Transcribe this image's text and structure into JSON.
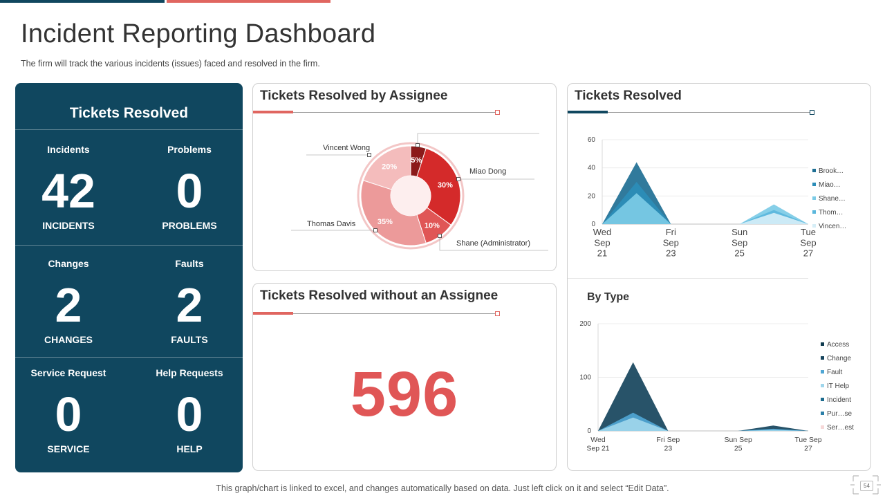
{
  "page": {
    "title": "Incident Reporting Dashboard",
    "subtitle": "The firm will track the various  incidents (issues) faced and resolved  in the firm.",
    "footer": "This graph/chart is linked to excel, and changes automatically based on data. Just left click on it and select “Edit Data”.",
    "page_number": "54"
  },
  "left_panel": {
    "title": "Tickets Resolved",
    "metrics": [
      {
        "label": "Incidents",
        "value": "42",
        "sub": "INCIDENTS"
      },
      {
        "label": "Problems",
        "value": "0",
        "sub": "PROBLEMS"
      },
      {
        "label": "Changes",
        "value": "2",
        "sub": "CHANGES"
      },
      {
        "label": "Faults",
        "value": "2",
        "sub": "FAULTS"
      },
      {
        "label": "Service Request",
        "value": "0",
        "sub": "SERVICE"
      },
      {
        "label": "Help Requests",
        "value": "0",
        "sub": "HELP"
      }
    ]
  },
  "assignee_card": {
    "title": "Tickets Resolved by Assignee"
  },
  "no_assignee_card": {
    "title": "Tickets Resolved without an Assignee",
    "value": "596"
  },
  "resolved_card": {
    "title": "Tickets Resolved",
    "by_type_title": "By Type"
  },
  "colors": {
    "navy": "#10475f",
    "accent_red": "#e06660",
    "big_number": "#e05656"
  },
  "chart_data": [
    {
      "type": "pie",
      "title": "Tickets Resolved by Assignee",
      "categories": [
        "Miao Dong",
        "Shane (Administrator)",
        "Thomas Davis",
        "Vincent Wong",
        ""
      ],
      "values": [
        30,
        10,
        35,
        20,
        5
      ],
      "labels": [
        "30%",
        "10%",
        "35%",
        "20%",
        "5%"
      ],
      "colors": [
        "#d42a2a",
        "#e05656",
        "#ec9a9a",
        "#f4bcbc",
        "#8b1a1a"
      ]
    },
    {
      "type": "area",
      "title": "Tickets Resolved",
      "x": [
        "Wed Sep 21",
        "Thu Sep 22",
        "Fri Sep 23",
        "Sat Sep 24",
        "Sun Sep 25",
        "Mon Sep 26",
        "Tue Sep 27"
      ],
      "x_tick_labels": [
        [
          "Wed",
          "Sep",
          "21"
        ],
        [
          "Fri",
          "Sep",
          "23"
        ],
        [
          "Sun",
          "Sep",
          "25"
        ],
        [
          "Tue",
          "Sep",
          "27"
        ]
      ],
      "ylim": [
        0,
        60
      ],
      "yticks": [
        0,
        20,
        40,
        60
      ],
      "legend_position": "right",
      "series": [
        {
          "name": "Brook…",
          "values": [
            0,
            44,
            0,
            0,
            0,
            0,
            0
          ],
          "color": "#1f6f94"
        },
        {
          "name": "Miao…",
          "values": [
            0,
            30,
            0,
            0,
            0,
            0,
            0
          ],
          "color": "#2b8db8"
        },
        {
          "name": "Shane…",
          "values": [
            0,
            22,
            0,
            0,
            0,
            14,
            0
          ],
          "color": "#7ccbe6"
        },
        {
          "name": "Thom…",
          "values": [
            0,
            0,
            0,
            0,
            0,
            10,
            0
          ],
          "color": "#5bb7dc"
        },
        {
          "name": "Vincen…",
          "values": [
            0,
            0,
            0,
            0,
            0,
            8,
            0
          ],
          "color": "#d6eef7"
        }
      ]
    },
    {
      "type": "area",
      "title": "By Type",
      "x": [
        "Wed Sep 21",
        "Thu Sep 22",
        "Fri Sep 23",
        "Sat Sep 24",
        "Sun Sep 25",
        "Mon Sep 26",
        "Tue Sep 27"
      ],
      "x_tick_labels": [
        [
          "Wed",
          "Sep 21"
        ],
        [
          "Fri Sep",
          "23"
        ],
        [
          "Sun Sep",
          "25"
        ],
        [
          "Tue Sep",
          "27"
        ]
      ],
      "ylim": [
        0,
        200
      ],
      "yticks": [
        0,
        100,
        200
      ],
      "legend_position": "right",
      "series": [
        {
          "name": "Access",
          "values": [
            0,
            0,
            0,
            0,
            0,
            0,
            0
          ],
          "color": "#0f3a4f"
        },
        {
          "name": "Change",
          "values": [
            0,
            128,
            0,
            0,
            0,
            10,
            0
          ],
          "color": "#16445c"
        },
        {
          "name": "Fault",
          "values": [
            0,
            34,
            0,
            0,
            0,
            4,
            0
          ],
          "color": "#4fa6d4"
        },
        {
          "name": "IT Help",
          "values": [
            0,
            25,
            0,
            0,
            0,
            2,
            0
          ],
          "color": "#9fd6ec"
        },
        {
          "name": "Incident",
          "values": [
            0,
            0,
            0,
            0,
            0,
            0,
            0
          ],
          "color": "#1c6b8e"
        },
        {
          "name": "Pur…se",
          "values": [
            0,
            0,
            0,
            0,
            0,
            0,
            0
          ],
          "color": "#2b7fa8"
        },
        {
          "name": "Ser…est",
          "values": [
            0,
            0,
            0,
            0,
            0,
            0,
            0
          ],
          "color": "#f6d8d8"
        }
      ]
    }
  ]
}
